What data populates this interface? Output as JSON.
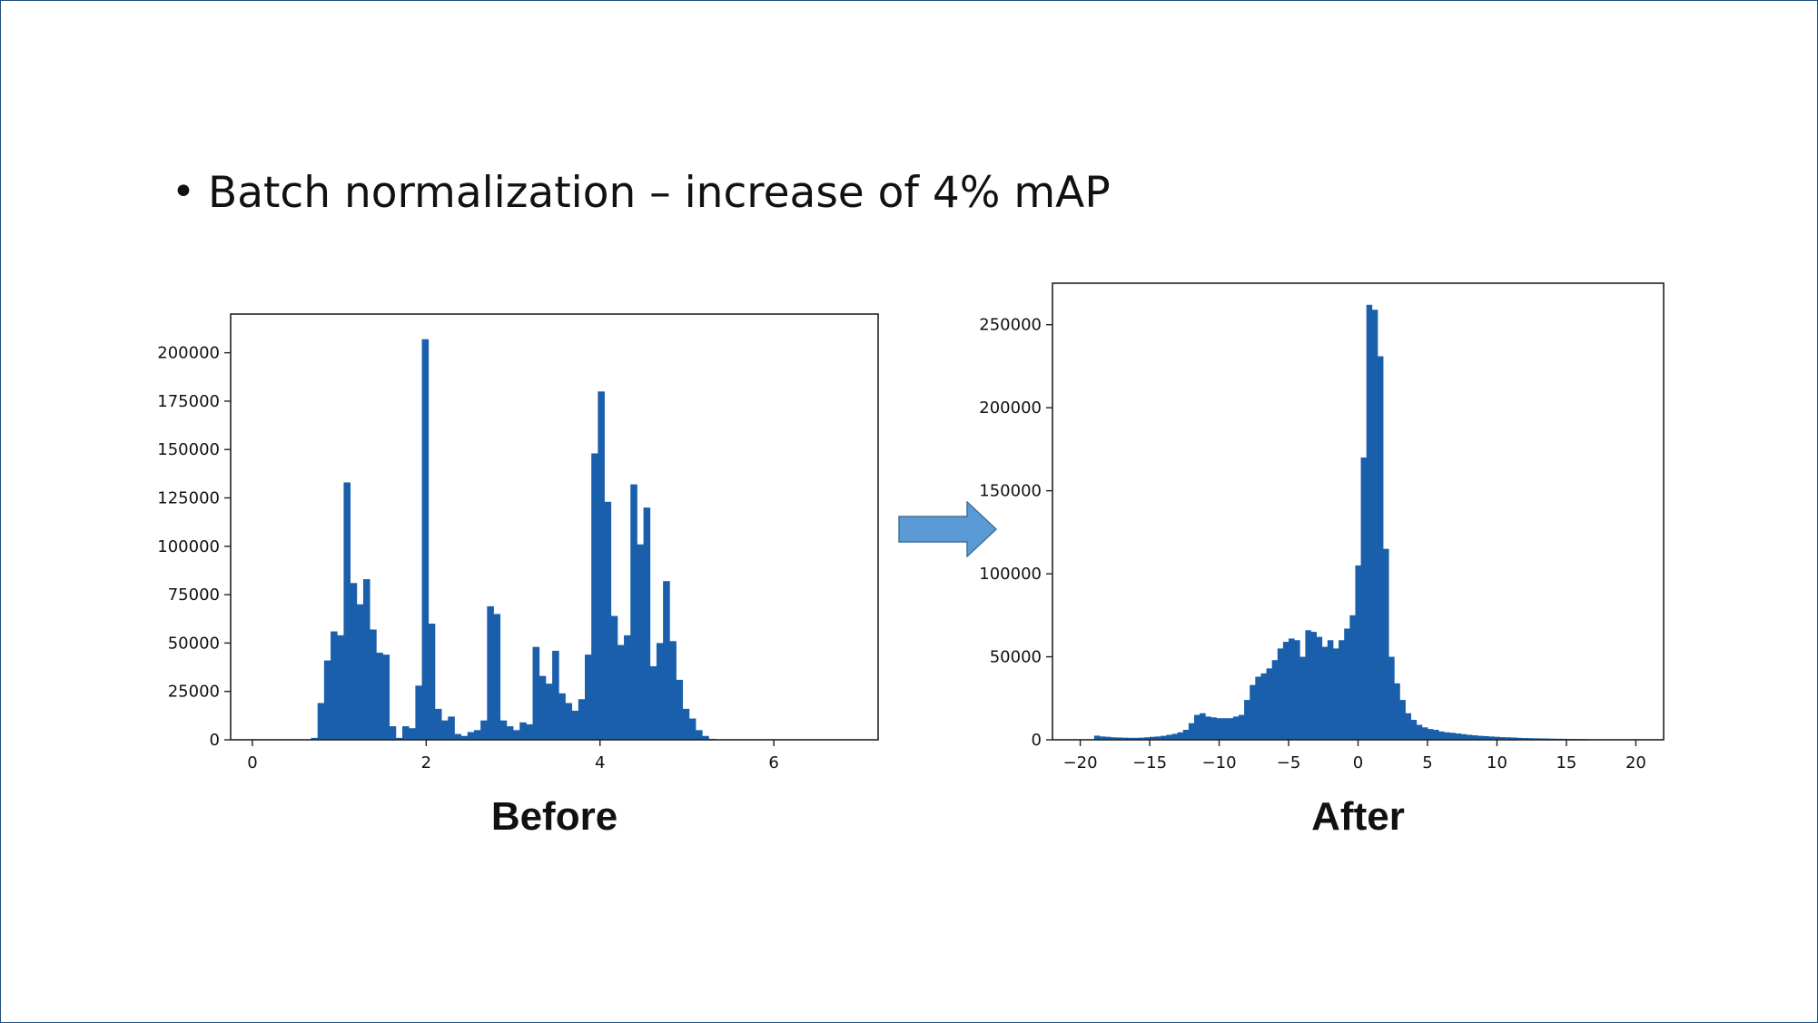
{
  "slide": {
    "bullet_symbol": "•",
    "bullet_text": "Batch normalization – increase of 4% mAP",
    "arrow_icon": "right-arrow-icon",
    "arrow_color": "#5b9bd5",
    "arrow_outline": "#41719c"
  },
  "chart_data": [
    {
      "type": "bar",
      "subtype": "histogram",
      "caption": "Before",
      "bar_color": "#1a5fac",
      "xlim": [
        -0.25,
        7.2
      ],
      "ylim": [
        0,
        220000
      ],
      "xticks": [
        0,
        2,
        4,
        6
      ],
      "xtick_labels": [
        "0",
        "2",
        "4",
        "6"
      ],
      "yticks": [
        0,
        25000,
        50000,
        75000,
        100000,
        125000,
        150000,
        175000,
        200000
      ],
      "ytick_labels": [
        "0",
        "25000",
        "50000",
        "75000",
        "100000",
        "125000",
        "150000",
        "175000",
        "200000"
      ],
      "bin_width": 0.075,
      "bins": [
        {
          "x": 0.675,
          "y": 1000
        },
        {
          "x": 0.75,
          "y": 19000
        },
        {
          "x": 0.825,
          "y": 41000
        },
        {
          "x": 0.9,
          "y": 56000
        },
        {
          "x": 0.975,
          "y": 54000
        },
        {
          "x": 1.05,
          "y": 133000
        },
        {
          "x": 1.125,
          "y": 81000
        },
        {
          "x": 1.2,
          "y": 70000
        },
        {
          "x": 1.275,
          "y": 83000
        },
        {
          "x": 1.35,
          "y": 57000
        },
        {
          "x": 1.425,
          "y": 45000
        },
        {
          "x": 1.5,
          "y": 44000
        },
        {
          "x": 1.575,
          "y": 7000
        },
        {
          "x": 1.65,
          "y": 1000
        },
        {
          "x": 1.725,
          "y": 7000
        },
        {
          "x": 1.8,
          "y": 6000
        },
        {
          "x": 1.875,
          "y": 28000
        },
        {
          "x": 1.95,
          "y": 207000
        },
        {
          "x": 2.025,
          "y": 60000
        },
        {
          "x": 2.1,
          "y": 16000
        },
        {
          "x": 2.175,
          "y": 10000
        },
        {
          "x": 2.25,
          "y": 12000
        },
        {
          "x": 2.325,
          "y": 3000
        },
        {
          "x": 2.4,
          "y": 2000
        },
        {
          "x": 2.475,
          "y": 4000
        },
        {
          "x": 2.55,
          "y": 5000
        },
        {
          "x": 2.625,
          "y": 10000
        },
        {
          "x": 2.7,
          "y": 69000
        },
        {
          "x": 2.775,
          "y": 65000
        },
        {
          "x": 2.85,
          "y": 10000
        },
        {
          "x": 2.925,
          "y": 7000
        },
        {
          "x": 3.0,
          "y": 5000
        },
        {
          "x": 3.075,
          "y": 9000
        },
        {
          "x": 3.15,
          "y": 8000
        },
        {
          "x": 3.225,
          "y": 48000
        },
        {
          "x": 3.3,
          "y": 33000
        },
        {
          "x": 3.375,
          "y": 29000
        },
        {
          "x": 3.45,
          "y": 46000
        },
        {
          "x": 3.525,
          "y": 24000
        },
        {
          "x": 3.6,
          "y": 19000
        },
        {
          "x": 3.675,
          "y": 15000
        },
        {
          "x": 3.75,
          "y": 21000
        },
        {
          "x": 3.825,
          "y": 44000
        },
        {
          "x": 3.9,
          "y": 148000
        },
        {
          "x": 3.975,
          "y": 180000
        },
        {
          "x": 4.05,
          "y": 123000
        },
        {
          "x": 4.125,
          "y": 64000
        },
        {
          "x": 4.2,
          "y": 49000
        },
        {
          "x": 4.275,
          "y": 54000
        },
        {
          "x": 4.35,
          "y": 132000
        },
        {
          "x": 4.425,
          "y": 101000
        },
        {
          "x": 4.5,
          "y": 120000
        },
        {
          "x": 4.575,
          "y": 38000
        },
        {
          "x": 4.65,
          "y": 50000
        },
        {
          "x": 4.725,
          "y": 82000
        },
        {
          "x": 4.8,
          "y": 51000
        },
        {
          "x": 4.875,
          "y": 31000
        },
        {
          "x": 4.95,
          "y": 16000
        },
        {
          "x": 5.025,
          "y": 11000
        },
        {
          "x": 5.1,
          "y": 5000
        },
        {
          "x": 5.175,
          "y": 2000
        },
        {
          "x": 5.25,
          "y": 500
        }
      ]
    },
    {
      "type": "bar",
      "subtype": "histogram",
      "caption": "After",
      "bar_color": "#1a5fac",
      "xlim": [
        -22,
        22
      ],
      "ylim": [
        0,
        275000
      ],
      "xticks": [
        -20,
        -15,
        -10,
        -5,
        0,
        5,
        10,
        15,
        20
      ],
      "xtick_labels": [
        "−20",
        "−15",
        "−10",
        "−5",
        "0",
        "5",
        "10",
        "15",
        "20"
      ],
      "yticks": [
        0,
        50000,
        100000,
        150000,
        200000,
        250000
      ],
      "ytick_labels": [
        "0",
        "50000",
        "100000",
        "150000",
        "200000",
        "250000"
      ],
      "bin_width": 0.4,
      "bins": [
        {
          "x": -19.0,
          "y": 2500
        },
        {
          "x": -18.6,
          "y": 2000
        },
        {
          "x": -18.2,
          "y": 1800
        },
        {
          "x": -17.8,
          "y": 1500
        },
        {
          "x": -17.4,
          "y": 1400
        },
        {
          "x": -17.0,
          "y": 1300
        },
        {
          "x": -16.6,
          "y": 1200
        },
        {
          "x": -16.2,
          "y": 1200
        },
        {
          "x": -15.8,
          "y": 1300
        },
        {
          "x": -15.4,
          "y": 1500
        },
        {
          "x": -15.0,
          "y": 1800
        },
        {
          "x": -14.6,
          "y": 2000
        },
        {
          "x": -14.2,
          "y": 2400
        },
        {
          "x": -13.8,
          "y": 3000
        },
        {
          "x": -13.4,
          "y": 3600
        },
        {
          "x": -13.0,
          "y": 4500
        },
        {
          "x": -12.6,
          "y": 6000
        },
        {
          "x": -12.2,
          "y": 10000
        },
        {
          "x": -11.8,
          "y": 15000
        },
        {
          "x": -11.4,
          "y": 16000
        },
        {
          "x": -11.0,
          "y": 14000
        },
        {
          "x": -10.6,
          "y": 13500
        },
        {
          "x": -10.2,
          "y": 13000
        },
        {
          "x": -9.8,
          "y": 13000
        },
        {
          "x": -9.4,
          "y": 13000
        },
        {
          "x": -9.0,
          "y": 14000
        },
        {
          "x": -8.6,
          "y": 15000
        },
        {
          "x": -8.2,
          "y": 24000
        },
        {
          "x": -7.8,
          "y": 33000
        },
        {
          "x": -7.4,
          "y": 38000
        },
        {
          "x": -7.0,
          "y": 40000
        },
        {
          "x": -6.6,
          "y": 43000
        },
        {
          "x": -6.2,
          "y": 48000
        },
        {
          "x": -5.8,
          "y": 55000
        },
        {
          "x": -5.4,
          "y": 59000
        },
        {
          "x": -5.0,
          "y": 61000
        },
        {
          "x": -4.6,
          "y": 60000
        },
        {
          "x": -4.2,
          "y": 50000
        },
        {
          "x": -3.8,
          "y": 66000
        },
        {
          "x": -3.4,
          "y": 65000
        },
        {
          "x": -3.0,
          "y": 62000
        },
        {
          "x": -2.6,
          "y": 56000
        },
        {
          "x": -2.2,
          "y": 60000
        },
        {
          "x": -1.8,
          "y": 55000
        },
        {
          "x": -1.4,
          "y": 60000
        },
        {
          "x": -1.0,
          "y": 67000
        },
        {
          "x": -0.6,
          "y": 75000
        },
        {
          "x": -0.2,
          "y": 105000
        },
        {
          "x": 0.2,
          "y": 170000
        },
        {
          "x": 0.6,
          "y": 262000
        },
        {
          "x": 1.0,
          "y": 259000
        },
        {
          "x": 1.4,
          "y": 231000
        },
        {
          "x": 1.8,
          "y": 115000
        },
        {
          "x": 2.2,
          "y": 50000
        },
        {
          "x": 2.6,
          "y": 34000
        },
        {
          "x": 3.0,
          "y": 24000
        },
        {
          "x": 3.4,
          "y": 16000
        },
        {
          "x": 3.8,
          "y": 12000
        },
        {
          "x": 4.2,
          "y": 9000
        },
        {
          "x": 4.6,
          "y": 7500
        },
        {
          "x": 5.0,
          "y": 6500
        },
        {
          "x": 5.4,
          "y": 6000
        },
        {
          "x": 5.8,
          "y": 5000
        },
        {
          "x": 6.2,
          "y": 4500
        },
        {
          "x": 6.6,
          "y": 4200
        },
        {
          "x": 7.0,
          "y": 3800
        },
        {
          "x": 7.4,
          "y": 3400
        },
        {
          "x": 7.8,
          "y": 3000
        },
        {
          "x": 8.2,
          "y": 2700
        },
        {
          "x": 8.6,
          "y": 2400
        },
        {
          "x": 9.0,
          "y": 2200
        },
        {
          "x": 9.4,
          "y": 2000
        },
        {
          "x": 9.8,
          "y": 1800
        },
        {
          "x": 10.2,
          "y": 1600
        },
        {
          "x": 10.6,
          "y": 1500
        },
        {
          "x": 11.0,
          "y": 1400
        },
        {
          "x": 11.4,
          "y": 1200
        },
        {
          "x": 11.8,
          "y": 1100
        },
        {
          "x": 12.2,
          "y": 1000
        },
        {
          "x": 12.6,
          "y": 900
        },
        {
          "x": 13.0,
          "y": 850
        },
        {
          "x": 13.4,
          "y": 800
        },
        {
          "x": 13.8,
          "y": 700
        },
        {
          "x": 14.2,
          "y": 650
        },
        {
          "x": 14.6,
          "y": 600
        },
        {
          "x": 15.0,
          "y": 550
        },
        {
          "x": 15.4,
          "y": 500
        },
        {
          "x": 15.8,
          "y": 450
        },
        {
          "x": 16.2,
          "y": 400
        }
      ]
    }
  ]
}
